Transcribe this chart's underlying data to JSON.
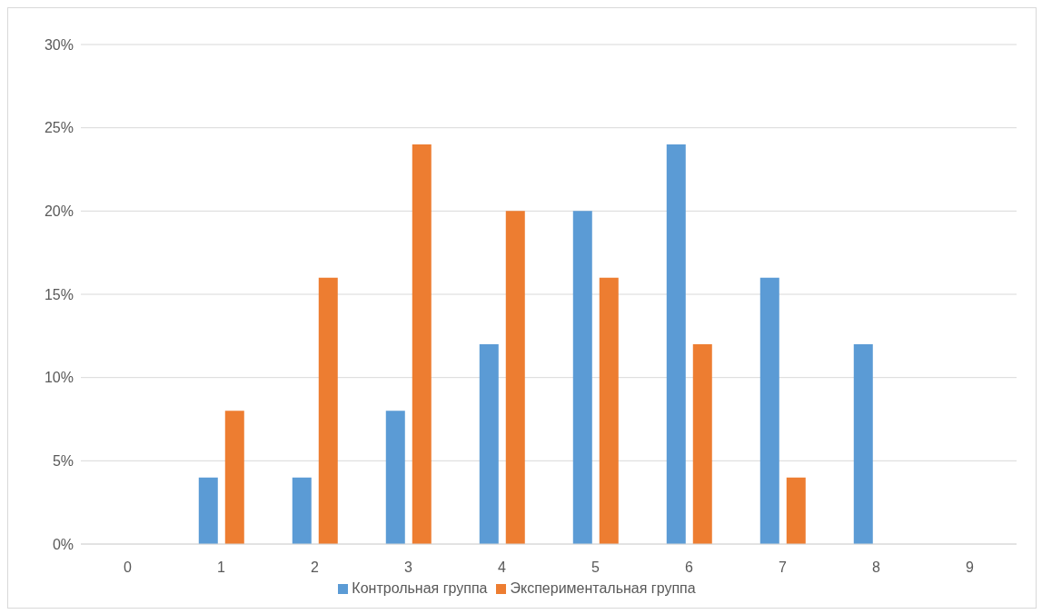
{
  "chart_data": {
    "type": "bar",
    "categories": [
      "0",
      "1",
      "2",
      "3",
      "4",
      "5",
      "6",
      "7",
      "8",
      "9"
    ],
    "series": [
      {
        "name": "Контрольная группа",
        "color": "#5b9bd5",
        "values": [
          0,
          4,
          4,
          8,
          12,
          20,
          24,
          16,
          12,
          0
        ]
      },
      {
        "name": "Экспериментальная группа",
        "color": "#ed7d31",
        "values": [
          0,
          8,
          16,
          24,
          20,
          16,
          12,
          4,
          0,
          0
        ]
      }
    ],
    "ylim": [
      0,
      30
    ],
    "yticks": [
      {
        "value": 0,
        "label": "0%"
      },
      {
        "value": 5,
        "label": "5%"
      },
      {
        "value": 10,
        "label": "10%"
      },
      {
        "value": 15,
        "label": "15%"
      },
      {
        "value": 20,
        "label": "20%"
      },
      {
        "value": 25,
        "label": "25%"
      },
      {
        "value": 30,
        "label": "30%"
      }
    ],
    "grid": "y",
    "legend": "bottom"
  }
}
